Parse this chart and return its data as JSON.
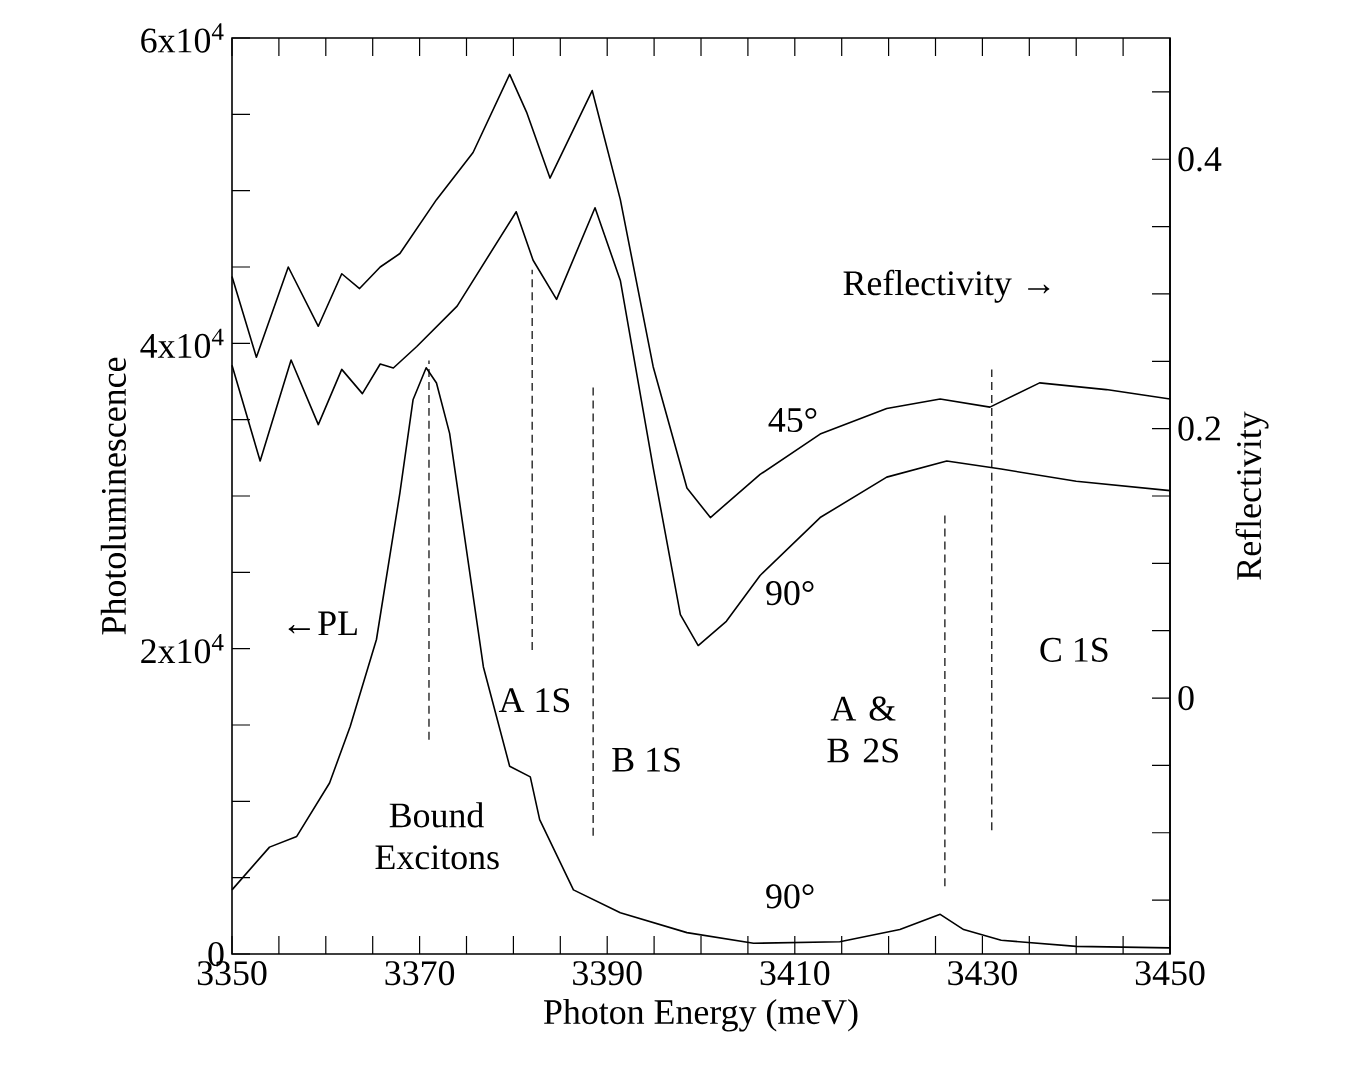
{
  "chart_data": {
    "type": "line",
    "xlabel": "Photon Energy (meV)",
    "ylabel": "Photoluminescence",
    "y2label": "Reflectivity",
    "xlim": [
      3350,
      3450
    ],
    "ylim": [
      0,
      60000
    ],
    "y2lim": [
      -0.19,
      0.49
    ],
    "xticks": [
      3350,
      {
        "value": 3355,
        "label": null
      },
      {
        "value": 3360,
        "label": null
      },
      {
        "value": 3365,
        "label": null
      },
      3370,
      {
        "value": 3375,
        "label": null
      },
      {
        "value": 3380,
        "label": null
      },
      {
        "value": 3385,
        "label": null
      },
      3390,
      {
        "value": 3395,
        "label": null
      },
      {
        "value": 3400,
        "label": null
      },
      {
        "value": 3405,
        "label": null
      },
      3410,
      {
        "value": 3415,
        "label": null
      },
      {
        "value": 3420,
        "label": null
      },
      {
        "value": 3425,
        "label": null
      },
      3430,
      {
        "value": 3435,
        "label": null
      },
      {
        "value": 3440,
        "label": null
      },
      {
        "value": 3445,
        "label": null
      },
      3450
    ],
    "yticks": [
      0,
      {
        "value": 5000,
        "label": null
      },
      {
        "value": 10000,
        "label": null
      },
      {
        "value": 15000,
        "label": null
      },
      {
        "value": 20000,
        "label": "2x10$^{4}$"
      },
      {
        "value": 25000,
        "label": null
      },
      {
        "value": 30000,
        "label": null
      },
      {
        "value": 35000,
        "label": null
      },
      {
        "value": 40000,
        "label": "4x10$^{4}$"
      },
      {
        "value": 45000,
        "label": null
      },
      {
        "value": 50000,
        "label": null
      },
      {
        "value": 55000,
        "label": null
      },
      {
        "value": 60000,
        "label": "6x10$^{4}$"
      }
    ],
    "y2ticks": [
      {
        "value": -0.15,
        "label": null
      },
      {
        "value": -0.1,
        "label": null
      },
      {
        "value": -0.05,
        "label": null
      },
      0,
      {
        "value": 0.05,
        "label": null
      },
      {
        "value": 0.1,
        "label": null
      },
      {
        "value": 0.15,
        "label": null
      },
      0.2,
      {
        "value": 0.25,
        "label": null
      },
      {
        "value": 0.3,
        "label": null
      },
      {
        "value": 0.35,
        "label": null
      },
      0.4,
      {
        "value": 0.45,
        "label": null
      }
    ],
    "line_style": "solid",
    "series": [
      {
        "color": "#000000",
        "x": [
          3350,
          3354,
          3356.9,
          3360.4,
          3362.6,
          3365.4,
          3367.9,
          3369.3,
          3370.7,
          3371.8,
          3373.2,
          3376.8,
          3379.6,
          3381.8,
          3382.8,
          3386.4,
          3391.4,
          3398.5,
          3405.6,
          3414.8,
          3421.2,
          3425.5,
          3428,
          3432,
          3440,
          3450
        ],
        "values": [
          4200,
          7000,
          7700,
          11200,
          14900,
          20600,
          30200,
          36300,
          38400,
          37400,
          34100,
          18800,
          12300,
          11600,
          8800,
          4200,
          2700,
          1400,
          700,
          800,
          1600,
          2600,
          1600,
          900,
          500,
          400
        ]
      },
      {
        "color": "#000000",
        "axis": "y2",
        "x": [
          3350,
          3352.6,
          3356,
          3359.2,
          3361.7,
          3363.6,
          3365.8,
          3367.9,
          3371.8,
          3375.7,
          3379.6,
          3381.4,
          3383.9,
          3388.4,
          3391.4,
          3394.9,
          3398.5,
          3401,
          3406.3,
          3412.7,
          3419.8,
          3425.5,
          3430.8,
          3436.1,
          3443.2,
          3450
        ],
        "values": [
          0.313,
          0.253,
          0.32,
          0.276,
          0.315,
          0.304,
          0.32,
          0.33,
          0.37,
          0.405,
          0.463,
          0.435,
          0.386,
          0.451,
          0.37,
          0.246,
          0.156,
          0.134,
          0.166,
          0.196,
          0.215,
          0.222,
          0.216,
          0.234,
          0.229,
          0.222
        ]
      },
      {
        "color": "#000000",
        "axis": "y2",
        "x": [
          3350,
          3353,
          3356.3,
          3359.2,
          3361.7,
          3363.9,
          3365.8,
          3367.2,
          3369.7,
          3374,
          3380.3,
          3382.1,
          3384.6,
          3388.7,
          3391.4,
          3394.9,
          3397.8,
          3399.7,
          3402.7,
          3406.3,
          3412.7,
          3419.8,
          3426.2,
          3432,
          3440,
          3450
        ],
        "values": [
          0.247,
          0.176,
          0.251,
          0.203,
          0.244,
          0.226,
          0.248,
          0.245,
          0.261,
          0.291,
          0.361,
          0.325,
          0.296,
          0.364,
          0.31,
          0.171,
          0.062,
          0.039,
          0.057,
          0.091,
          0.134,
          0.164,
          0.176,
          0.17,
          0.161,
          0.154
        ]
      }
    ],
    "ref_lines": [
      {
        "axis": "x",
        "value": 3371,
        "line_style": "dashed",
        "color": "#000000"
      },
      {
        "axis": "x",
        "value": 3382,
        "line_style": "dashed",
        "color": "#000000"
      },
      {
        "axis": "x",
        "value": 3388.5,
        "line_style": "dashed",
        "color": "#000000"
      },
      {
        "axis": "x",
        "value": 3426,
        "line_style": "dashed",
        "color": "#000000"
      },
      {
        "axis": "x",
        "value": 3431,
        "line_style": "dashed",
        "color": "#000000"
      }
    ],
    "annotations": [
      "←PL",
      "Reflectivity →",
      "45°",
      "90°",
      "90°",
      "Bound Excitons",
      "A 1S",
      "B 1S",
      "A & B 2S",
      "C 1S"
    ]
  }
}
